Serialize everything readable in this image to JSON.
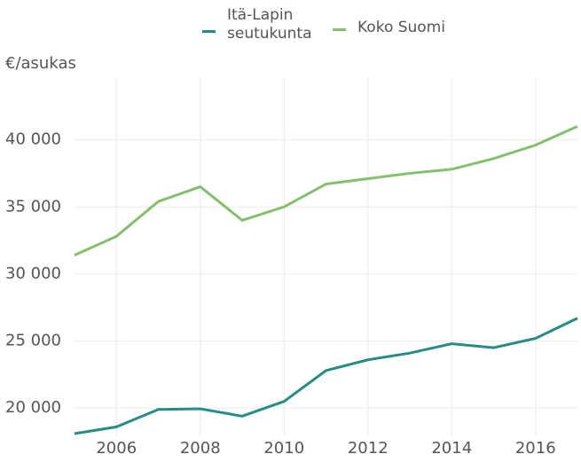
{
  "chart_data": {
    "type": "line",
    "y_axis_label": "€/asukas",
    "x": [
      2005,
      2006,
      2007,
      2008,
      2009,
      2010,
      2011,
      2012,
      2013,
      2014,
      2015,
      2016,
      2017
    ],
    "series": [
      {
        "name": "Itä-Lapin seutukunta",
        "color": "#258c86",
        "values": [
          18100,
          18600,
          19900,
          19950,
          19400,
          20500,
          22800,
          23600,
          24100,
          24800,
          24500,
          25200,
          26700
        ]
      },
      {
        "name": "Koko Suomi",
        "color": "#83c06d",
        "values": [
          31400,
          32800,
          35400,
          36500,
          34000,
          35000,
          36700,
          37100,
          37500,
          37800,
          38600,
          39600,
          41000
        ]
      }
    ],
    "xlim": [
      2005,
      2017
    ],
    "xticks": [
      2006,
      2008,
      2010,
      2012,
      2014,
      2016
    ],
    "ylim": [
      17900,
      44600
    ],
    "yticks": [
      {
        "value": 20000,
        "label": "20 000"
      },
      {
        "value": 25000,
        "label": "25 000"
      },
      {
        "value": 30000,
        "label": "30 000"
      },
      {
        "value": 35000,
        "label": "35 000"
      },
      {
        "value": 40000,
        "label": "40 000"
      }
    ],
    "grid": true
  }
}
